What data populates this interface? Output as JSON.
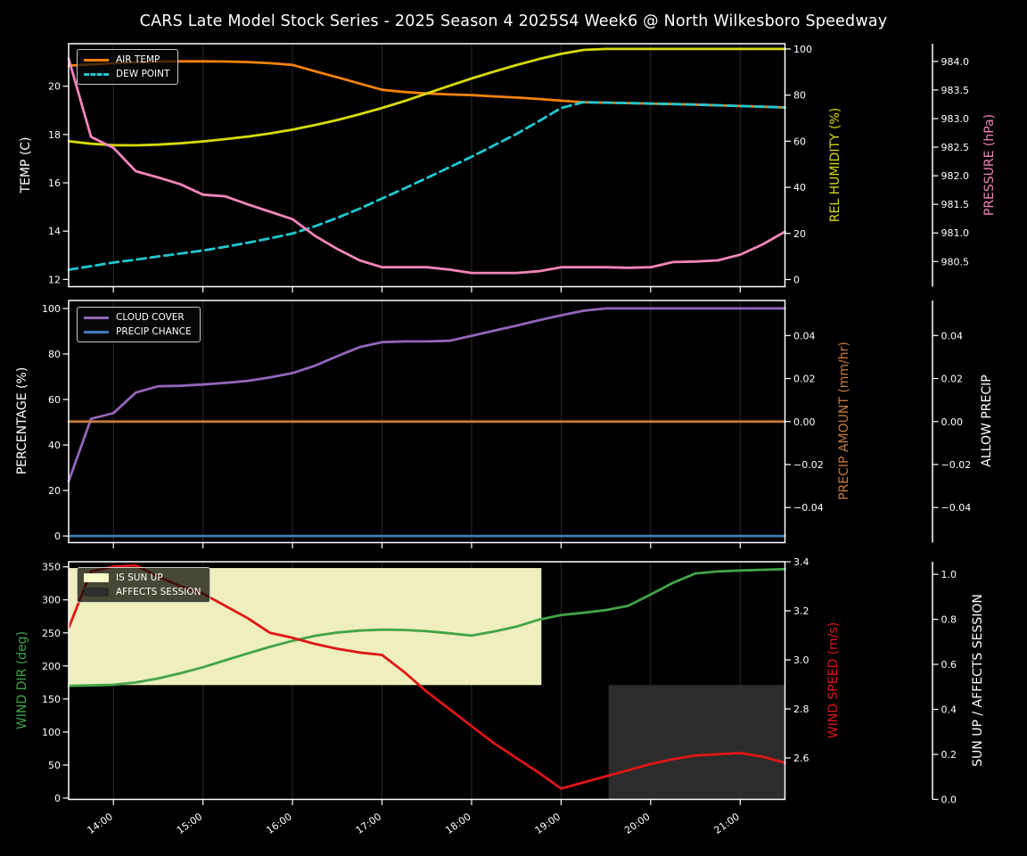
{
  "title": "CARS Late Model Stock Series - 2025 Season 4 2025S4 Week6 @ North Wilkesboro Speedway",
  "colors": {
    "background": "#000000",
    "text": "#ffffff",
    "grid": "#2a2a2a",
    "spine": "#ffffff",
    "air_temp": "#f5820b",
    "dew_point": "#1fc8d2",
    "rel_humidity": "#d8db08",
    "pressure": "#f285ba",
    "cloud_cover": "#9565bb",
    "precip_chance": "#3f7cba",
    "precip_amount": "#c47a3d",
    "wind_dir": "#42a447",
    "wind_speed": "#e11515",
    "sun_up_band": "#fbfbc8",
    "affects_session_band": "#2e2e2e"
  },
  "chart_data": {
    "type": "line",
    "x_axis": {
      "start_hour": 13.5,
      "end_hour": 21.5,
      "step_hours": 0.25,
      "tick_hours": [
        14,
        15,
        16,
        17,
        18,
        19,
        20,
        21
      ],
      "tick_labels": [
        "14:00",
        "15:00",
        "16:00",
        "17:00",
        "18:00",
        "19:00",
        "20:00",
        "21:00"
      ]
    },
    "panels": [
      {
        "id": "temperature",
        "axes": {
          "left": {
            "label": "TEMP (C)",
            "color": "#ffffff",
            "min": 11.7,
            "max": 21.76,
            "tick_values": [
              12,
              14,
              16,
              18,
              20
            ],
            "tick_labels": [
              "12",
              "14",
              "16",
              "18",
              "20"
            ]
          },
          "right_inner": {
            "label": "REL HUMIDITY (%)",
            "color": "#d8db08",
            "min": -3.1,
            "max": 102.3,
            "tick_values": [
              0,
              20,
              40,
              60,
              80,
              100
            ],
            "tick_labels": [
              "0",
              "20",
              "40",
              "60",
              "80",
              "100"
            ]
          },
          "right_outer": {
            "label": "PRESSURE (hPa)",
            "color": "#f285ba",
            "min": 980.06,
            "max": 984.31,
            "tick_values": [
              980.5,
              981.0,
              981.5,
              982.0,
              982.5,
              983.0,
              983.5,
              984.0
            ],
            "tick_labels": [
              "980.5",
              "981.0",
              "981.5",
              "982.0",
              "982.5",
              "983.0",
              "983.5",
              "984.0"
            ]
          }
        },
        "series": [
          {
            "name": "AIR TEMP",
            "axis": "left",
            "color": "#f5820b",
            "dashed": false,
            "values": [
              20.85,
              20.9,
              20.95,
              21.0,
              21.02,
              21.03,
              21.03,
              21.02,
              21.0,
              20.95,
              20.88,
              20.62,
              20.37,
              20.11,
              19.85,
              19.76,
              19.7,
              19.66,
              19.63,
              19.58,
              19.53,
              19.47,
              19.4,
              19.34,
              19.32,
              19.3,
              19.28,
              19.26,
              19.24,
              19.21,
              19.18,
              19.15,
              19.12
            ]
          },
          {
            "name": "DEW POINT",
            "axis": "left",
            "color": "#1fc8d2",
            "dashed": true,
            "values": [
              12.4,
              12.55,
              12.7,
              12.82,
              12.95,
              13.07,
              13.2,
              13.35,
              13.52,
              13.7,
              13.9,
              14.2,
              14.55,
              14.93,
              15.35,
              15.77,
              16.2,
              16.64,
              17.08,
              17.55,
              18.02,
              18.55,
              19.1,
              19.34,
              19.32,
              19.3,
              19.28,
              19.26,
              19.24,
              19.21,
              19.18,
              19.15,
              19.12
            ]
          },
          {
            "name": "REL HUMIDITY",
            "axis": "right_inner",
            "color": "#d8db08",
            "dashed": false,
            "values": [
              60,
              58.9,
              58.3,
              58.2,
              58.5,
              59.1,
              59.9,
              60.9,
              62,
              63.4,
              65,
              67,
              69.2,
              71.7,
              74.4,
              77.4,
              80.7,
              84,
              87.2,
              90.2,
              93,
              95.6,
              97.9,
              99.6,
              100,
              100,
              100,
              100,
              100,
              100,
              100,
              100,
              100
            ]
          },
          {
            "name": "PRESSURE",
            "axis": "right_outer",
            "color": "#f285ba",
            "dashed": false,
            "values": [
              984.05,
              982.68,
              982.49,
              982.08,
              981.97,
              981.85,
              981.67,
              981.64,
              981.5,
              981.37,
              981.24,
              980.95,
              980.72,
              980.52,
              980.4,
              980.4,
              980.4,
              980.36,
              980.3,
              980.3,
              980.3,
              980.33,
              980.4,
              980.4,
              980.4,
              980.39,
              980.4,
              980.49,
              980.5,
              980.52,
              980.62,
              980.8,
              981.02
            ]
          }
        ],
        "bands": []
      },
      {
        "id": "precipitation",
        "axes": {
          "left": {
            "label": "PERCENTAGE (%)",
            "color": "#ffffff",
            "min": -2.9,
            "max": 103.5,
            "tick_values": [
              0,
              20,
              40,
              60,
              80,
              100
            ],
            "tick_labels": [
              "0",
              "20",
              "40",
              "60",
              "80",
              "100"
            ]
          },
          "right_inner": {
            "label": "PRECIP AMOUNT (mm/hr)",
            "color": "#c47a3d",
            "min": -0.0563,
            "max": 0.0563,
            "tick_values": [
              -0.04,
              -0.02,
              0,
              0.02,
              0.04
            ],
            "tick_labels": [
              "−0.04",
              "−0.02",
              "0.00",
              "0.02",
              "0.04"
            ]
          },
          "right_outer": {
            "label": "ALLOW PRECIP",
            "color": "#ffffff",
            "min": -0.0563,
            "max": 0.0563,
            "tick_values": [
              -0.04,
              -0.02,
              0,
              0.02,
              0.04
            ],
            "tick_labels": [
              "−0.04",
              "−0.02",
              "0.00",
              "0.02",
              "0.04"
            ]
          }
        },
        "series": [
          {
            "name": "CLOUD COVER",
            "axis": "left",
            "color": "#9565bb",
            "dashed": false,
            "values": [
              24,
              51.5,
              54,
              63,
              65.8,
              66,
              66.6,
              67.3,
              68.2,
              69.7,
              71.6,
              74.8,
              79,
              83,
              85.2,
              85.5,
              85.5,
              85.8,
              88,
              90.2,
              92.4,
              94.8,
              97,
              99,
              100,
              100,
              100,
              100,
              100,
              100,
              100,
              100,
              100
            ]
          },
          {
            "name": "PRECIP AMOUNT",
            "axis": "right_inner",
            "color": "#c47a3d",
            "dashed": false,
            "values": [
              0,
              0,
              0,
              0,
              0,
              0,
              0,
              0,
              0,
              0,
              0,
              0,
              0,
              0,
              0,
              0,
              0,
              0,
              0,
              0,
              0,
              0,
              0,
              0,
              0,
              0,
              0,
              0,
              0,
              0,
              0,
              0,
              0
            ]
          },
          {
            "name": "PRECIP CHANCE",
            "axis": "left",
            "color": "#3f7cba",
            "dashed": false,
            "values": [
              0,
              0,
              0,
              0,
              0,
              0,
              0,
              0,
              0,
              0,
              0,
              0,
              0,
              0,
              0,
              0,
              0,
              0,
              0,
              0,
              0,
              0,
              0,
              0,
              0,
              0,
              0,
              0,
              0,
              0,
              0,
              0,
              0
            ]
          }
        ],
        "bands": []
      },
      {
        "id": "wind",
        "axes": {
          "left": {
            "label": "WIND DIR (deg)",
            "color": "#42a447",
            "min": -2,
            "max": 357.7,
            "tick_values": [
              0,
              50,
              100,
              150,
              200,
              250,
              300,
              350
            ],
            "tick_labels": [
              "0",
              "50",
              "100",
              "150",
              "200",
              "250",
              "300",
              "350"
            ]
          },
          "right_inner": {
            "label": "WIND SPEED (m/s)",
            "color": "#e11515",
            "min": 2.431,
            "max": 3.4,
            "tick_values": [
              2.6,
              2.8,
              3.0,
              3.2,
              3.4
            ],
            "tick_labels": [
              "2.6",
              "2.8",
              "3.0",
              "3.2",
              "3.4"
            ]
          },
          "right_outer": {
            "label": "SUN UP / AFFECTS SESSION",
            "color": "#ffffff",
            "min": 0,
            "max": 1.056,
            "tick_values": [
              0,
              0.2,
              0.4,
              0.6,
              0.8,
              1.0
            ],
            "tick_labels": [
              "0.0",
              "0.2",
              "0.4",
              "0.6",
              "0.8",
              "1.0"
            ]
          }
        },
        "series": [
          {
            "name": "WIND DIR",
            "axis": "left",
            "color": "#42a447",
            "dashed": false,
            "values": [
              170,
              170.5,
              171.5,
              175,
              181,
              189,
              198,
              208.5,
              219,
              229,
              238,
              245.5,
              250.5,
              253.5,
              255,
              254.5,
              252.5,
              249.5,
              246,
              252,
              259.5,
              270,
              277,
              280.5,
              284.5,
              291,
              308,
              326,
              340,
              343,
              344.5,
              345.5,
              346.5
            ]
          },
          {
            "name": "WIND SPEED",
            "axis": "right_inner",
            "color": "#e11515",
            "dashed": false,
            "values": [
              3.13,
              3.36,
              3.38,
              3.385,
              3.34,
              3.3,
              3.27,
              3.22,
              3.17,
              3.11,
              3.09,
              3.065,
              3.045,
              3.03,
              3.02,
              2.95,
              2.87,
              2.8,
              2.73,
              2.66,
              2.6,
              2.54,
              2.475,
              2.5,
              2.525,
              2.55,
              2.575,
              2.595,
              2.61,
              2.615,
              2.62,
              2.605,
              2.58
            ]
          }
        ],
        "hidden_series": [
          {
            "name": "IS SUN UP",
            "values": [
              1,
              1,
              1,
              1,
              1,
              1,
              1,
              1,
              1,
              1,
              1,
              1,
              1,
              1,
              1,
              1,
              1,
              1,
              1,
              1,
              1,
              1,
              0,
              0,
              0,
              0,
              0,
              0,
              0,
              0,
              0,
              0,
              0
            ]
          },
          {
            "name": "AFFECTS SESSION",
            "values": [
              0,
              0,
              0,
              0,
              0,
              0,
              0,
              0,
              0,
              0,
              0,
              0,
              0,
              0,
              0,
              0,
              0,
              0,
              0,
              0,
              0,
              0,
              0,
              0,
              1,
              1,
              1,
              1,
              1,
              1,
              1,
              1,
              1
            ]
          }
        ],
        "bands": [
          {
            "name": "IS SUN UP",
            "axis": "right_outer",
            "color": "#fbfbc8",
            "x_start_hour": 13.5,
            "x_end_hour": 18.78,
            "y_top": 1.028,
            "y_bottom": 0.508
          },
          {
            "name": "AFFECTS SESSION",
            "axis": "right_outer",
            "color": "#2e2e2e",
            "x_start_hour": 19.53,
            "x_end_hour": 21.5,
            "y_top": 0.508,
            "y_bottom": 0
          }
        ]
      }
    ]
  }
}
